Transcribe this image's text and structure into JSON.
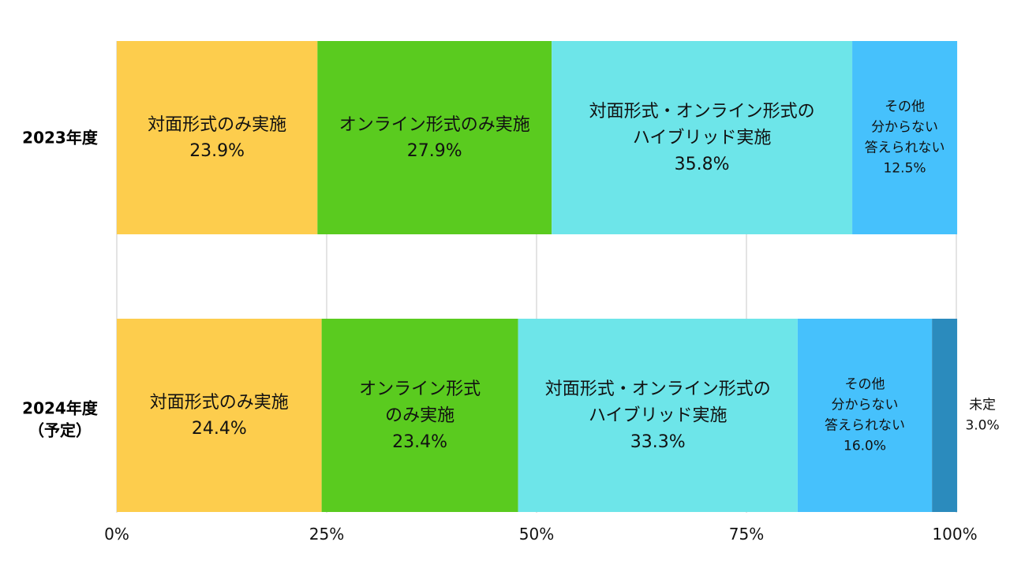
{
  "chart_data": {
    "type": "bar",
    "orientation": "horizontal",
    "stacked": true,
    "categories": [
      "2023年度",
      "2024年度（予定）"
    ],
    "category_lines": [
      [
        "2023年度"
      ],
      [
        "2024年度",
        "（予定）"
      ]
    ],
    "xlim": [
      0,
      100
    ],
    "x_ticks": [
      "0%",
      "25%",
      "50%",
      "75%",
      "100%"
    ],
    "grid": true,
    "series": [
      {
        "color": "#FDCD4D",
        "values": [
          23.9,
          24.4
        ],
        "labels": [
          [
            "対面形式のみ実施",
            "23.9%"
          ],
          [
            "対面形式のみ実施",
            "24.4%"
          ]
        ]
      },
      {
        "color": "#5ACB1F",
        "values": [
          27.9,
          23.4
        ],
        "labels": [
          [
            "オンライン形式のみ実施",
            "27.9%"
          ],
          [
            "オンライン形式",
            "のみ実施",
            "23.4%"
          ]
        ]
      },
      {
        "color": "#6DE5E9",
        "values": [
          35.8,
          33.3
        ],
        "labels": [
          [
            "対面形式・オンライン形式の",
            "ハイブリッド実施",
            "35.8%"
          ],
          [
            "対面形式・オンライン形式の",
            "ハイブリッド実施",
            "33.3%"
          ]
        ]
      },
      {
        "color": "#46C1FC",
        "values": [
          12.5,
          16.0
        ],
        "labels": [
          [
            "その他",
            "分からない",
            "答えられない",
            "12.5%"
          ],
          [
            "その他",
            "分からない",
            "答えられない",
            "16.0%"
          ]
        ]
      },
      {
        "color": "#2B8BBD",
        "values": [
          0,
          3.0
        ],
        "labels": [
          [],
          [
            "未定",
            "3.0%"
          ]
        ]
      }
    ]
  }
}
